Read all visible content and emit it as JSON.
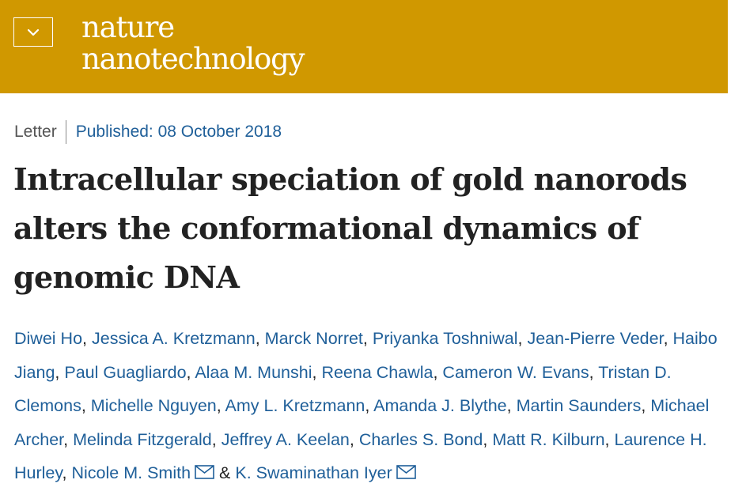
{
  "header": {
    "background": "#d09800",
    "logo_line1": "nature",
    "logo_line2": "nanotechnology",
    "menu_icon": "chevron-down-icon"
  },
  "article": {
    "type": "Letter",
    "published": "Published: 08 October 2018",
    "title": "Intracellular speciation of gold nanorods alters the conformational dynamics of genomic DNA"
  },
  "authors": [
    {
      "name": "Diwei Ho",
      "sep": ", "
    },
    {
      "name": "Jessica A. Kretzmann",
      "sep": ", "
    },
    {
      "name": "Marck Norret",
      "sep": ", "
    },
    {
      "name": "Priyanka Toshniwal",
      "sep": ", "
    },
    {
      "name": "Jean-Pierre Veder",
      "sep": ", "
    },
    {
      "name": "Haibo Jiang",
      "sep": ", "
    },
    {
      "name": "Paul Guagliardo",
      "sep": ", "
    },
    {
      "name": "Alaa M. Munshi",
      "sep": ", "
    },
    {
      "name": "Reena Chawla",
      "sep": ", "
    },
    {
      "name": "Cameron W. Evans",
      "sep": ", "
    },
    {
      "name": "Tristan D. Clemons",
      "sep": ", "
    },
    {
      "name": "Michelle Nguyen",
      "sep": ", "
    },
    {
      "name": "Amy L. Kretzmann",
      "sep": ", "
    },
    {
      "name": "Amanda J. Blythe",
      "sep": ", "
    },
    {
      "name": "Martin Saunders",
      "sep": ", "
    },
    {
      "name": "Michael Archer",
      "sep": ", "
    },
    {
      "name": "Melinda Fitzgerald",
      "sep": ", "
    },
    {
      "name": "Jeffrey A. Keelan",
      "sep": ", "
    },
    {
      "name": "Charles S. Bond",
      "sep": ", "
    },
    {
      "name": "Matt R. Kilburn",
      "sep": ", "
    },
    {
      "name": "Laurence H. Hurley",
      "sep": ", "
    },
    {
      "name": "Nicole M. Smith",
      "sep": "",
      "email": true,
      "icon": "mail-icon"
    },
    {
      "name": "K. Swaminathan Iyer",
      "sep": "",
      "email": true,
      "icon": "mail-icon"
    }
  ],
  "authors_conjunction": "& "
}
